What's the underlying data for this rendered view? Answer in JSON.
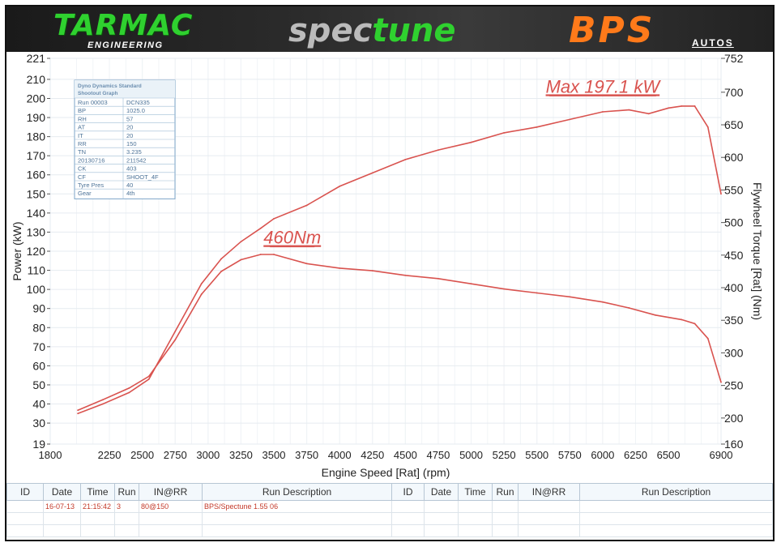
{
  "branding": {
    "left_logo": "TARMAC",
    "left_logo_sub": "ENGINEERING",
    "center_logo_a": "spec",
    "center_logo_b": "tune",
    "right_logo": "BPS",
    "right_logo_sub": "AUTOS"
  },
  "chart_data": {
    "type": "line",
    "xlabel": "Engine Speed [Rat] (rpm)",
    "ylabel_left": "Power (kW)",
    "ylabel_right": "Flywheel Torque [Rat] (Nm)",
    "xlim": [
      1800,
      6900
    ],
    "ylim_left": [
      19,
      221
    ],
    "ylim_right": [
      160,
      752
    ],
    "x_ticks": [
      "1800",
      "2250",
      "2500",
      "2750",
      "3000",
      "3250",
      "3500",
      "3750",
      "4000",
      "4250",
      "4500",
      "4750",
      "5000",
      "5250",
      "5500",
      "5750",
      "6000",
      "6250",
      "6500",
      "6900"
    ],
    "y_ticks_left": [
      "19",
      "30",
      "40",
      "50",
      "60",
      "70",
      "80",
      "90",
      "100",
      "110",
      "120",
      "130",
      "140",
      "150",
      "160",
      "170",
      "180",
      "190",
      "200",
      "210",
      "221"
    ],
    "y_ticks_right": [
      "160",
      "200",
      "250",
      "300",
      "350",
      "400",
      "450",
      "500",
      "550",
      "600",
      "650",
      "700",
      "752"
    ],
    "grid": true,
    "line_color": "#d9534f",
    "series": [
      {
        "axis": "left",
        "x": [
          2010,
          2200,
          2400,
          2550,
          2750,
          2950,
          3100,
          3250,
          3400,
          3500,
          3750,
          4000,
          4250,
          4500,
          4750,
          5000,
          5250,
          5500,
          5750,
          6000,
          6200,
          6350,
          6500,
          6600,
          6700,
          6800,
          6900
        ],
        "y": [
          35,
          40,
          46,
          53,
          78,
          103,
          116,
          125,
          132,
          137,
          144,
          154,
          161,
          168,
          173,
          177,
          182,
          185,
          189,
          193,
          194,
          192,
          195,
          196,
          196,
          185,
          150
        ]
      },
      {
        "axis": "right",
        "x": [
          2010,
          2200,
          2400,
          2550,
          2750,
          2950,
          3100,
          3250,
          3400,
          3500,
          3750,
          4000,
          4250,
          4500,
          4750,
          5000,
          5250,
          5500,
          5750,
          6000,
          6200,
          6400,
          6600,
          6700,
          6800,
          6900
        ],
        "y": [
          212,
          228,
          246,
          264,
          320,
          390,
          425,
          443,
          451,
          451,
          437,
          430,
          426,
          419,
          414,
          406,
          398,
          392,
          386,
          378,
          369,
          358,
          351,
          345,
          322,
          255
        ]
      }
    ],
    "annotations": [
      {
        "text": "Max 197.1 kW",
        "x": 6000,
        "y_left": 203
      },
      {
        "text": "460Nm",
        "x": 3640,
        "y_left": 124
      }
    ]
  },
  "info_box": {
    "title_line1": "Dyno Dynamics Standard",
    "title_line2": "Shootout Graph",
    "rows": [
      [
        "Run 00003",
        "DCN335"
      ],
      [
        "BP",
        "1025.0"
      ],
      [
        "RH",
        "57"
      ],
      [
        "AT",
        "20"
      ],
      [
        "IT",
        "20"
      ],
      [
        "RR",
        "150"
      ],
      [
        "TN",
        "3.235"
      ],
      [
        "20130716",
        "211542"
      ],
      [
        "CK",
        "403"
      ],
      [
        "CF",
        "SHOOT_4F"
      ],
      [
        "Tyre Pres",
        "40"
      ],
      [
        "Gear",
        "4th"
      ]
    ]
  },
  "run_table": {
    "headers": [
      "ID",
      "Date",
      "Time",
      "Run",
      "IN@RR",
      "Run Description",
      "ID",
      "Date",
      "Time",
      "Run",
      "IN@RR",
      "Run Description"
    ],
    "rows": [
      [
        "",
        "16-07-13",
        "21:15:42",
        "3",
        "80@150",
        "BPS/Spectune  1.55  06",
        "",
        "",
        "",
        "",
        "",
        ""
      ],
      [
        "",
        "",
        "",
        "",
        "",
        "",
        "",
        "",
        "",
        "",
        "",
        ""
      ],
      [
        "",
        "",
        "",
        "",
        "",
        "",
        "",
        "",
        "",
        "",
        "",
        ""
      ]
    ]
  }
}
